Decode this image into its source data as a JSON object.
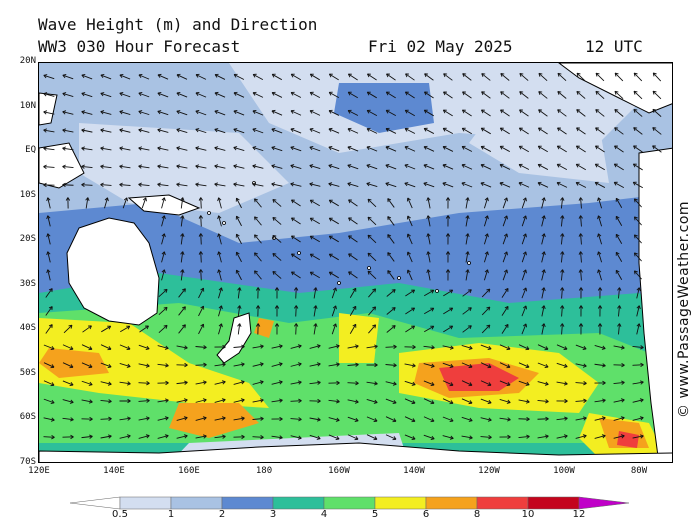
{
  "header": {
    "title": "Wave Height (m) and Direction",
    "subtitle": "WW3 030 Hour Forecast",
    "date": "Fri 02 May 2025",
    "time": "12 UTC"
  },
  "credit": "© www.PassageWeather.com",
  "lat_labels": [
    "20N",
    "10N",
    "EQ",
    "10S",
    "20S",
    "30S",
    "40S",
    "50S",
    "60S",
    "70S"
  ],
  "lon_labels": [
    "120E",
    "140E",
    "160E",
    "180",
    "160W",
    "140W",
    "120W",
    "100W",
    "80W"
  ],
  "legend": {
    "labels": [
      "0.5",
      "1",
      "2",
      "3",
      "4",
      "5",
      "6",
      "8",
      "10",
      "12"
    ],
    "colors": [
      "#ffffff",
      "#d3def0",
      "#a9c2e3",
      "#5d89d1",
      "#2dbf9a",
      "#5fe06a",
      "#f3ee21",
      "#f5a21d",
      "#ef3e3d",
      "#c4041d",
      "#c000c8"
    ]
  },
  "colors": {
    "land": "#ffffff",
    "coast": "#000000",
    "arrow": "#111111"
  }
}
